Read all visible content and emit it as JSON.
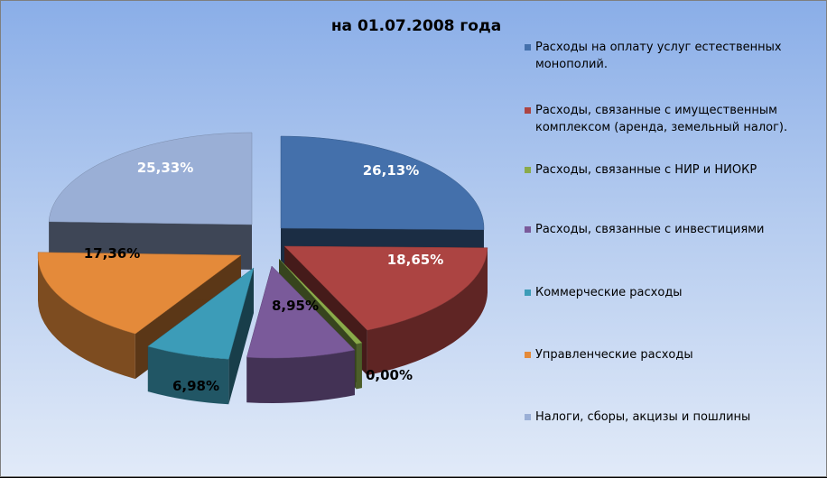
{
  "chart_data": {
    "type": "pie",
    "title": "на 01.07.2008 года",
    "legend_position": "right",
    "slices": [
      {
        "name": "Расходы на оплату услуг естественных монополий.",
        "value": 26.13,
        "label": "26,13%",
        "color": "#4470ab"
      },
      {
        "name": "Расходы, связанные с имущественным комплексом (аренда, земельный налог).",
        "value": 18.65,
        "label": "18,65%",
        "color": "#ac4442"
      },
      {
        "name": "Расходы, связанные с НИР и НИОКР",
        "value": 0.0,
        "label": "0,00%",
        "color": "#8aaa4a"
      },
      {
        "name": "Расходы, связанные с инвестициями",
        "value": 8.95,
        "label": "8,95%",
        "color": "#7a5a9a"
      },
      {
        "name": "Коммерческие расходы",
        "value": 6.98,
        "label": "6,98%",
        "color": "#3c9cb8"
      },
      {
        "name": "Управленческие расходы",
        "value": 17.36,
        "label": "17,36%",
        "color": "#e48a3a"
      },
      {
        "name": "Налоги, сборы, акцизы и пошлины",
        "value": 25.33,
        "label": "25,33%",
        "color": "#9aafd6"
      }
    ]
  }
}
